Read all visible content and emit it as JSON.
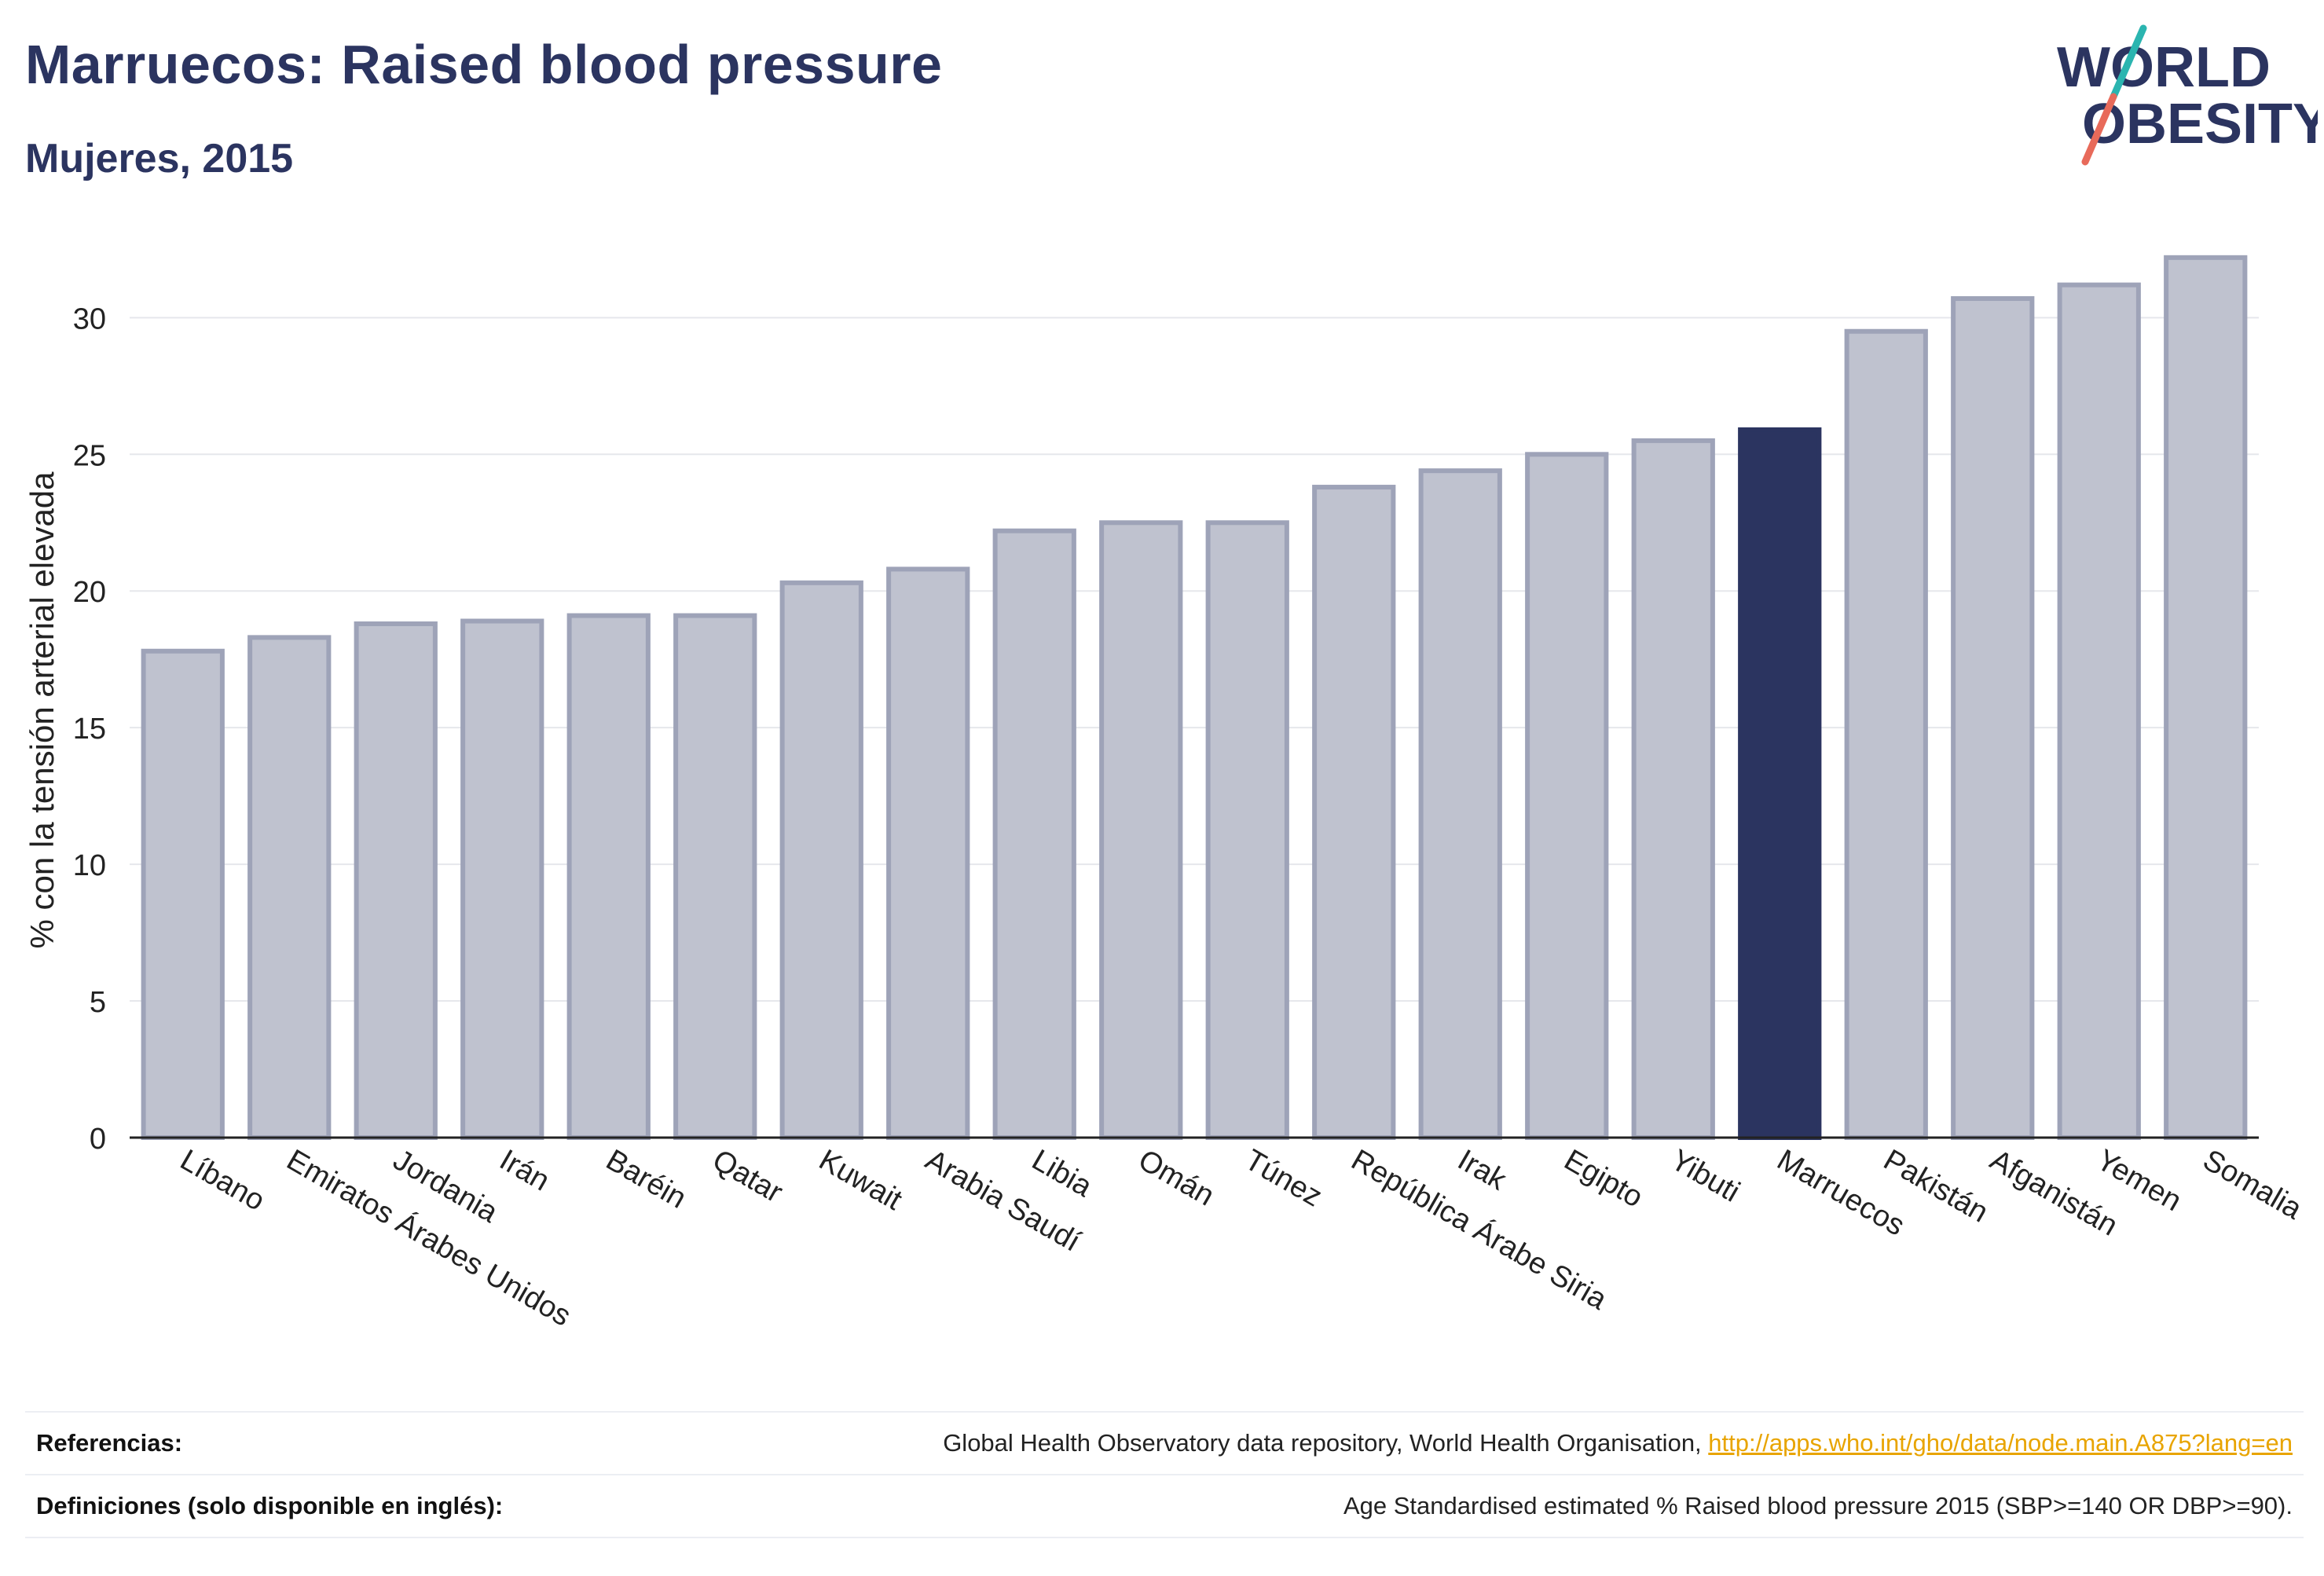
{
  "header": {
    "title": "Marruecos: Raised blood pressure",
    "subtitle": "Mujeres, 2015"
  },
  "logo": {
    "line1": "WORLD",
    "line2": "OBESITY",
    "colors": {
      "text": "#2b3460",
      "slash_teal": "#2bb5b0",
      "slash_coral": "#e86a5a"
    }
  },
  "chart_data": {
    "type": "bar",
    "categories": [
      "Líbano",
      "Emiratos Árabes Unidos",
      "Jordania",
      "Irán",
      "Baréin",
      "Qatar",
      "Kuwait",
      "Arabia Saudí",
      "Libia",
      "Omán",
      "Túnez",
      "República Árabe Siria",
      "Irak",
      "Egipto",
      "Yibuti",
      "Marruecos",
      "Pakistán",
      "Afganistán",
      "Yemen",
      "Somalia"
    ],
    "values": [
      17.8,
      18.3,
      18.8,
      18.9,
      19.1,
      19.1,
      20.3,
      20.8,
      22.2,
      22.5,
      22.5,
      23.8,
      24.4,
      25.0,
      25.5,
      25.9,
      29.5,
      30.7,
      31.2,
      32.2
    ],
    "highlight": "Marruecos",
    "xlabel": "",
    "ylabel": "% con la tensión arterial elevada",
    "ylim": [
      0,
      33
    ],
    "yticks": [
      0,
      5,
      10,
      15,
      20,
      25,
      30
    ],
    "grid": true,
    "colors": {
      "bar": "#bfc2cf",
      "bar_edge": "#9ea3b8",
      "highlight": "#2b3460",
      "grid": "#e6e7ec",
      "axis": "#222222"
    }
  },
  "footer": {
    "references_label": "Referencias:",
    "references_text": "Global Health Observatory data repository, World Health Organisation, ",
    "references_link": "http://apps.who.int/gho/data/node.main.A875?lang=en",
    "definitions_label": "Definiciones (solo disponible en inglés):",
    "definitions_text": "Age Standardised estimated % Raised blood pressure 2015 (SBP>=140 OR DBP>=90)."
  }
}
